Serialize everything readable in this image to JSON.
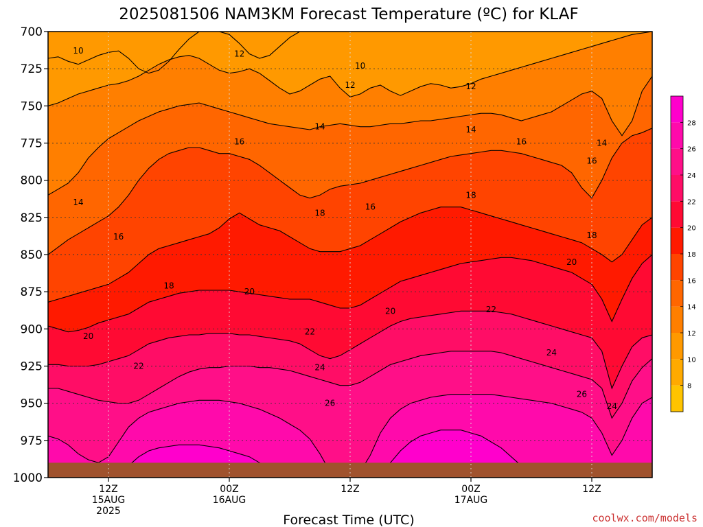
{
  "title": "2025081506 NAM3KM Forecast Temperature (ºC) for KLAF",
  "x_axis_label": "Forecast Time (UTC)",
  "credit": "coolwx.com/models",
  "colors": {
    "ground": "#a0522d",
    "credit": "#cc3333",
    "contour_line": "#000000"
  },
  "chart_data": {
    "type": "heatmap",
    "title": "2025081506 NAM3KM Forecast Temperature (ºC) for KLAF",
    "xlabel": "Forecast Time (UTC)",
    "ylabel": "",
    "y_axis": {
      "unit": "hPa",
      "ticks": [
        700,
        725,
        750,
        775,
        800,
        825,
        850,
        875,
        900,
        925,
        950,
        975,
        1000
      ],
      "range": [
        700,
        1000
      ],
      "inverted": true
    },
    "x_axis": {
      "unit": "forecast hour from 2025081506",
      "range": [
        0,
        60
      ],
      "ticks": [
        {
          "hour": 6,
          "lines": [
            "12Z",
            "15AUG",
            "2025"
          ]
        },
        {
          "hour": 18,
          "lines": [
            "00Z",
            "16AUG"
          ]
        },
        {
          "hour": 30,
          "lines": [
            "12Z"
          ]
        },
        {
          "hour": 42,
          "lines": [
            "00Z",
            "17AUG"
          ]
        },
        {
          "hour": 54,
          "lines": [
            "12Z"
          ]
        }
      ]
    },
    "grid": true,
    "colorbar": {
      "ticks": [
        8,
        10,
        12,
        14,
        16,
        18,
        20,
        22,
        24,
        26,
        28
      ],
      "placement": "right",
      "bands": [
        {
          "min": 6,
          "max": 8,
          "color": "#ffc400"
        },
        {
          "min": 8,
          "max": 10,
          "color": "#ffaa00"
        },
        {
          "min": 10,
          "max": 12,
          "color": "#ff9900"
        },
        {
          "min": 12,
          "max": 14,
          "color": "#ff7f00"
        },
        {
          "min": 14,
          "max": 16,
          "color": "#ff6600"
        },
        {
          "min": 16,
          "max": 18,
          "color": "#ff4400"
        },
        {
          "min": 18,
          "max": 20,
          "color": "#ff1a00"
        },
        {
          "min": 20,
          "max": 22,
          "color": "#ff0a33"
        },
        {
          "min": 22,
          "max": 24,
          "color": "#ff0d66"
        },
        {
          "min": 24,
          "max": 26,
          "color": "#ff0f88"
        },
        {
          "min": 26,
          "max": 28,
          "color": "#ff0aab"
        },
        {
          "min": 28,
          "max": 30,
          "color": "#ff00cc"
        }
      ]
    },
    "isotherms": [
      {
        "temp": 10,
        "label": "10",
        "pressure": [
          718,
          717,
          720,
          722,
          719,
          716,
          714,
          713,
          718,
          725,
          728,
          726,
          720,
          712,
          705,
          700,
          700,
          700,
          702,
          708,
          715,
          718,
          716,
          710,
          704,
          700,
          700,
          700,
          700,
          700,
          700,
          700,
          700,
          700,
          700,
          700,
          700,
          700,
          700,
          700,
          700,
          700,
          700,
          700,
          700,
          700,
          700,
          700,
          700,
          700,
          700,
          700,
          700,
          700,
          700,
          700,
          700,
          700,
          700,
          700,
          700
        ]
      },
      {
        "temp": 12,
        "label": "12",
        "pressure": [
          750,
          748,
          745,
          742,
          740,
          738,
          736,
          735,
          733,
          730,
          726,
          722,
          719,
          717,
          716,
          718,
          722,
          726,
          728,
          727,
          725,
          728,
          733,
          738,
          742,
          740,
          736,
          732,
          730,
          738,
          744,
          742,
          738,
          736,
          740,
          743,
          740,
          737,
          735,
          736,
          738,
          737,
          735,
          732,
          730,
          728,
          726,
          724,
          722,
          720,
          718,
          716,
          714,
          712,
          710,
          708,
          706,
          704,
          702,
          701,
          700
        ]
      },
      {
        "temp": 14,
        "label": "14",
        "pressure": [
          810,
          806,
          802,
          795,
          785,
          778,
          772,
          768,
          764,
          760,
          757,
          754,
          752,
          750,
          749,
          748,
          750,
          752,
          754,
          756,
          758,
          760,
          762,
          763,
          764,
          765,
          766,
          764,
          763,
          762,
          763,
          764,
          764,
          763,
          762,
          762,
          761,
          760,
          760,
          759,
          758,
          757,
          756,
          755,
          755,
          756,
          758,
          760,
          758,
          756,
          754,
          750,
          746,
          742,
          740,
          745,
          760,
          770,
          760,
          740,
          730
        ]
      },
      {
        "temp": 16,
        "label": "16",
        "pressure": [
          850,
          845,
          840,
          836,
          832,
          828,
          824,
          818,
          810,
          800,
          792,
          786,
          782,
          780,
          778,
          778,
          780,
          782,
          782,
          784,
          786,
          790,
          795,
          800,
          805,
          810,
          812,
          810,
          806,
          804,
          803,
          802,
          800,
          798,
          796,
          794,
          792,
          790,
          788,
          786,
          784,
          783,
          782,
          781,
          780,
          780,
          781,
          782,
          784,
          786,
          788,
          790,
          795,
          805,
          812,
          800,
          785,
          775,
          770,
          768,
          765
        ]
      },
      {
        "temp": 18,
        "label": "18",
        "pressure": [
          882,
          880,
          878,
          876,
          874,
          872,
          870,
          866,
          862,
          856,
          850,
          846,
          844,
          842,
          840,
          838,
          836,
          832,
          826,
          822,
          826,
          830,
          832,
          834,
          838,
          842,
          846,
          848,
          848,
          848,
          846,
          844,
          840,
          836,
          832,
          828,
          825,
          822,
          820,
          818,
          818,
          818,
          820,
          822,
          824,
          826,
          828,
          830,
          832,
          834,
          836,
          838,
          840,
          842,
          846,
          850,
          855,
          850,
          840,
          830,
          825
        ]
      },
      {
        "temp": 20,
        "label": "20",
        "pressure": [
          898,
          900,
          902,
          901,
          899,
          896,
          894,
          892,
          890,
          886,
          882,
          880,
          878,
          876,
          875,
          874,
          874,
          874,
          874,
          875,
          876,
          877,
          878,
          879,
          880,
          880,
          880,
          882,
          884,
          886,
          886,
          884,
          880,
          876,
          872,
          868,
          866,
          864,
          862,
          860,
          858,
          856,
          855,
          854,
          853,
          852,
          852,
          853,
          854,
          856,
          858,
          860,
          862,
          866,
          870,
          880,
          895,
          880,
          866,
          856,
          850
        ]
      },
      {
        "temp": 22,
        "label": "22",
        "pressure": [
          924,
          924,
          925,
          925,
          925,
          924,
          922,
          920,
          918,
          914,
          910,
          908,
          906,
          905,
          904,
          904,
          903,
          903,
          903,
          904,
          904,
          905,
          906,
          907,
          908,
          910,
          914,
          918,
          920,
          918,
          914,
          910,
          906,
          902,
          898,
          895,
          893,
          892,
          891,
          890,
          889,
          888,
          888,
          888,
          888,
          889,
          890,
          892,
          894,
          896,
          898,
          900,
          902,
          904,
          906,
          915,
          940,
          925,
          912,
          906,
          904
        ]
      },
      {
        "temp": 24,
        "label": "24",
        "pressure": [
          940,
          940,
          942,
          944,
          946,
          948,
          949,
          950,
          950,
          948,
          944,
          940,
          936,
          932,
          929,
          927,
          926,
          926,
          925,
          925,
          925,
          926,
          926,
          927,
          928,
          930,
          932,
          934,
          936,
          938,
          938,
          936,
          932,
          928,
          924,
          922,
          920,
          918,
          917,
          916,
          915,
          915,
          915,
          915,
          915,
          916,
          918,
          920,
          922,
          924,
          926,
          928,
          930,
          932,
          934,
          940,
          960,
          950,
          935,
          926,
          920
        ]
      },
      {
        "temp": 26,
        "label": "26",
        "pressure": [
          972,
          974,
          978,
          984,
          988,
          990,
          986,
          976,
          966,
          960,
          956,
          954,
          952,
          950,
          949,
          948,
          948,
          948,
          949,
          950,
          952,
          954,
          957,
          960,
          964,
          968,
          974,
          984,
          996,
          1000,
          1000,
          996,
          985,
          970,
          960,
          954,
          950,
          948,
          946,
          945,
          944,
          944,
          944,
          944,
          944,
          945,
          946,
          947,
          948,
          949,
          950,
          952,
          954,
          956,
          960,
          970,
          985,
          975,
          960,
          950,
          946
        ]
      },
      {
        "temp": 28,
        "label": "28",
        "pressure": [
          1000,
          1000,
          1000,
          1000,
          1000,
          1000,
          1000,
          998,
          992,
          986,
          982,
          980,
          979,
          978,
          978,
          978,
          979,
          980,
          982,
          984,
          986,
          990,
          994,
          998,
          1000,
          1000,
          1000,
          1000,
          1000,
          1000,
          1000,
          1000,
          1000,
          998,
          990,
          982,
          976,
          972,
          970,
          968,
          968,
          968,
          970,
          972,
          976,
          980,
          986,
          992,
          998,
          1000,
          1000,
          1000,
          1000,
          1000,
          1000,
          1000,
          1000,
          1000,
          1000,
          1000,
          1000
        ]
      }
    ],
    "contour_labels": [
      {
        "text": "10",
        "hour": 3,
        "pressure": 713
      },
      {
        "text": "12",
        "hour": 19,
        "pressure": 715
      },
      {
        "text": "10",
        "hour": 31,
        "pressure": 723
      },
      {
        "text": "12",
        "hour": 30,
        "pressure": 736
      },
      {
        "text": "12",
        "hour": 42,
        "pressure": 737
      },
      {
        "text": "14",
        "hour": 27,
        "pressure": 764
      },
      {
        "text": "14",
        "hour": 42,
        "pressure": 766
      },
      {
        "text": "14",
        "hour": 55,
        "pressure": 775
      },
      {
        "text": "16",
        "hour": 19,
        "pressure": 774
      },
      {
        "text": "16",
        "hour": 47,
        "pressure": 774
      },
      {
        "text": "16",
        "hour": 54,
        "pressure": 787
      },
      {
        "text": "16",
        "hour": 32,
        "pressure": 818
      },
      {
        "text": "16",
        "hour": 7,
        "pressure": 838
      },
      {
        "text": "14",
        "hour": 3,
        "pressure": 815
      },
      {
        "text": "18",
        "hour": 27,
        "pressure": 822
      },
      {
        "text": "18",
        "hour": 42,
        "pressure": 810
      },
      {
        "text": "18",
        "hour": 54,
        "pressure": 837
      },
      {
        "text": "18",
        "hour": 12,
        "pressure": 871
      },
      {
        "text": "20",
        "hour": 20,
        "pressure": 875
      },
      {
        "text": "20",
        "hour": 34,
        "pressure": 888
      },
      {
        "text": "20",
        "hour": 52,
        "pressure": 855
      },
      {
        "text": "20",
        "hour": 4,
        "pressure": 905
      },
      {
        "text": "22",
        "hour": 26,
        "pressure": 902
      },
      {
        "text": "22",
        "hour": 44,
        "pressure": 887
      },
      {
        "text": "22",
        "hour": 9,
        "pressure": 925
      },
      {
        "text": "24",
        "hour": 27,
        "pressure": 926
      },
      {
        "text": "24",
        "hour": 50,
        "pressure": 916
      },
      {
        "text": "24",
        "hour": 56,
        "pressure": 952
      },
      {
        "text": "26",
        "hour": 28,
        "pressure": 950
      },
      {
        "text": "26",
        "hour": 53,
        "pressure": 944
      }
    ]
  }
}
